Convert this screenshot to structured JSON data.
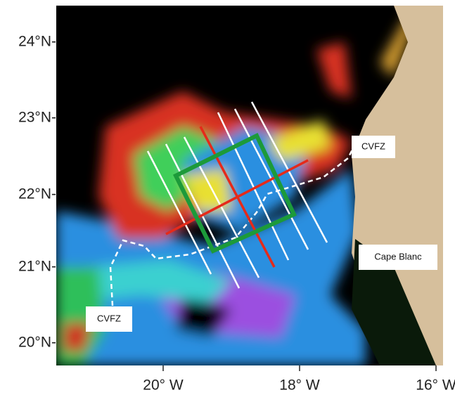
{
  "map": {
    "y_axis_labels": [
      "24°N-",
      "23°N-",
      "22°N-",
      "21°N-",
      "20°N-"
    ],
    "x_axis_labels": [
      "20° W",
      "18° W",
      "16° W"
    ],
    "annotations": [
      "CVFZ",
      "Cape Blanc",
      "CVFZ"
    ]
  }
}
